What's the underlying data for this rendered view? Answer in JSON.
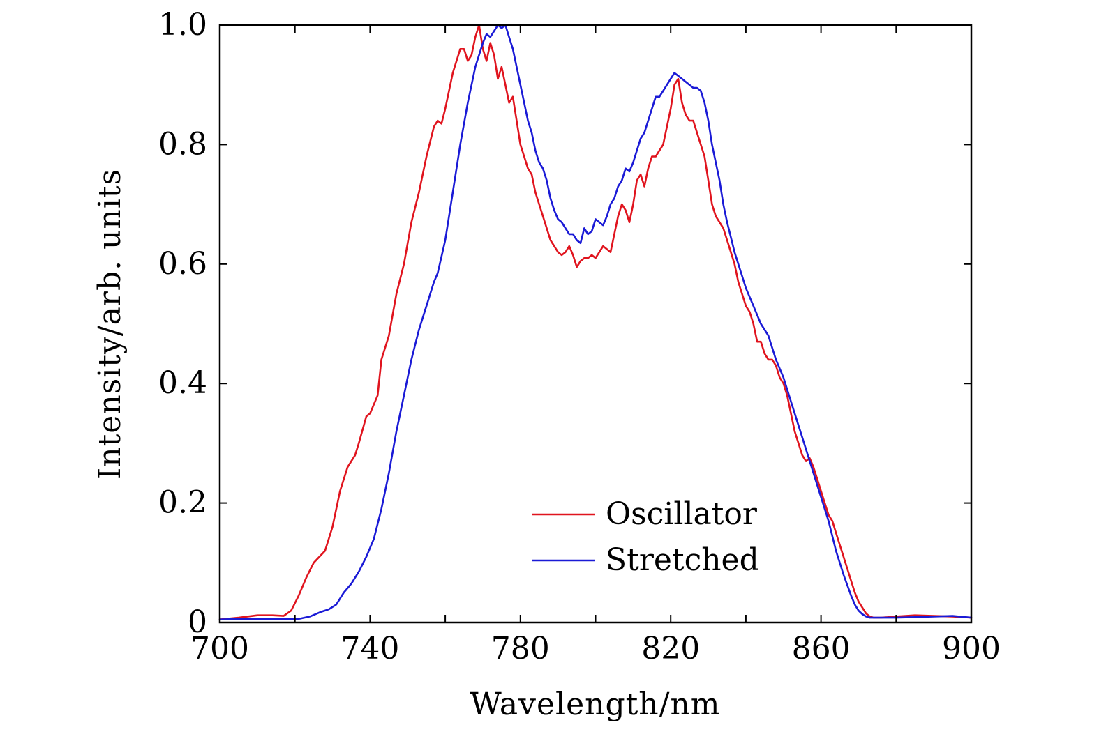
{
  "chart_data": {
    "type": "line",
    "title": "",
    "xlabel": "Wavelength/nm",
    "ylabel": "Intensity/arb. units",
    "xlim": [
      700,
      900
    ],
    "ylim": [
      0,
      1.0
    ],
    "grid": false,
    "legend_position": "bottom-right",
    "x_ticks": [
      700,
      740,
      780,
      820,
      860,
      900
    ],
    "x_tick_labels": [
      "700",
      "740",
      "780",
      "820",
      "860",
      "900"
    ],
    "x_minor_ticks": [
      720,
      760,
      800,
      840,
      880
    ],
    "y_ticks": [
      0,
      0.2,
      0.4,
      0.6,
      0.8,
      1.0
    ],
    "y_tick_labels": [
      "0",
      "0.2",
      "0.4",
      "0.6",
      "0.8",
      "1.0"
    ],
    "series": [
      {
        "name": "Oscillator",
        "color": "#e0141e",
        "x": [
          700,
          705,
          710,
          714,
          717,
          719,
          721,
          723,
          725,
          728,
          730,
          732,
          734,
          736,
          737,
          739,
          740,
          742,
          743,
          745,
          747,
          749,
          751,
          753,
          755,
          757,
          758,
          759,
          760,
          762,
          764,
          765,
          766,
          767,
          768,
          769,
          770,
          771,
          772,
          773,
          774,
          775,
          776,
          777,
          778,
          779,
          780,
          781,
          782,
          783,
          784,
          785,
          786,
          787,
          788,
          789,
          790,
          791,
          792,
          793,
          794,
          795,
          796,
          797,
          798,
          799,
          800,
          801,
          802,
          803,
          804,
          805,
          806,
          807,
          808,
          809,
          810,
          811,
          812,
          813,
          814,
          815,
          816,
          817,
          818,
          819,
          820,
          821,
          822,
          823,
          824,
          825,
          826,
          827,
          828,
          829,
          830,
          831,
          832,
          833,
          834,
          835,
          836,
          837,
          838,
          839,
          840,
          841,
          842,
          843,
          844,
          845,
          846,
          847,
          848,
          849,
          850,
          851,
          852,
          853,
          854,
          855,
          856,
          857,
          858,
          859,
          860,
          861,
          862,
          863,
          864,
          865,
          866,
          867,
          868,
          869,
          870,
          871,
          872,
          873,
          874,
          875,
          876,
          878,
          880,
          885,
          890,
          895,
          900
        ],
        "y": [
          0.005,
          0.008,
          0.012,
          0.012,
          0.011,
          0.02,
          0.045,
          0.075,
          0.1,
          0.12,
          0.16,
          0.22,
          0.26,
          0.28,
          0.3,
          0.345,
          0.35,
          0.38,
          0.44,
          0.48,
          0.55,
          0.6,
          0.67,
          0.72,
          0.78,
          0.83,
          0.84,
          0.835,
          0.86,
          0.92,
          0.96,
          0.96,
          0.94,
          0.95,
          0.98,
          1.0,
          0.96,
          0.94,
          0.97,
          0.95,
          0.91,
          0.93,
          0.9,
          0.87,
          0.88,
          0.84,
          0.8,
          0.78,
          0.76,
          0.75,
          0.72,
          0.7,
          0.68,
          0.66,
          0.64,
          0.63,
          0.62,
          0.615,
          0.62,
          0.63,
          0.615,
          0.595,
          0.605,
          0.61,
          0.61,
          0.615,
          0.61,
          0.62,
          0.63,
          0.625,
          0.62,
          0.65,
          0.68,
          0.7,
          0.69,
          0.67,
          0.7,
          0.74,
          0.75,
          0.73,
          0.76,
          0.78,
          0.78,
          0.79,
          0.8,
          0.83,
          0.86,
          0.9,
          0.91,
          0.87,
          0.85,
          0.84,
          0.84,
          0.82,
          0.8,
          0.78,
          0.74,
          0.7,
          0.68,
          0.67,
          0.66,
          0.64,
          0.62,
          0.6,
          0.57,
          0.55,
          0.53,
          0.52,
          0.5,
          0.47,
          0.47,
          0.45,
          0.44,
          0.44,
          0.43,
          0.41,
          0.4,
          0.38,
          0.35,
          0.32,
          0.3,
          0.28,
          0.27,
          0.275,
          0.26,
          0.24,
          0.22,
          0.2,
          0.18,
          0.17,
          0.15,
          0.13,
          0.11,
          0.09,
          0.07,
          0.05,
          0.035,
          0.025,
          0.015,
          0.01,
          0.008,
          0.008,
          0.008,
          0.009,
          0.01,
          0.012,
          0.011,
          0.01,
          0.008
        ]
      },
      {
        "name": "Stretched",
        "color": "#1a1ad6",
        "x": [
          700,
          705,
          710,
          715,
          718,
          721,
          724,
          727,
          729,
          731,
          733,
          735,
          737,
          739,
          741,
          743,
          745,
          747,
          749,
          751,
          753,
          755,
          757,
          758,
          760,
          762,
          764,
          766,
          768,
          770,
          771,
          772,
          773,
          774,
          775,
          776,
          777,
          778,
          779,
          780,
          781,
          782,
          783,
          784,
          785,
          786,
          787,
          788,
          789,
          790,
          791,
          792,
          793,
          794,
          795,
          796,
          797,
          798,
          799,
          800,
          801,
          802,
          803,
          804,
          805,
          806,
          807,
          808,
          809,
          810,
          811,
          812,
          813,
          814,
          815,
          816,
          817,
          818,
          819,
          820,
          821,
          822,
          823,
          824,
          825,
          826,
          827,
          828,
          829,
          830,
          831,
          832,
          833,
          834,
          835,
          836,
          837,
          838,
          839,
          840,
          842,
          844,
          846,
          848,
          850,
          852,
          854,
          856,
          858,
          860,
          862,
          864,
          866,
          868,
          869,
          870,
          871,
          872,
          873,
          874,
          875,
          876,
          878,
          880,
          885,
          890,
          895,
          900
        ],
        "y": [
          0.005,
          0.006,
          0.006,
          0.006,
          0.006,
          0.006,
          0.01,
          0.018,
          0.022,
          0.03,
          0.05,
          0.065,
          0.085,
          0.11,
          0.14,
          0.19,
          0.25,
          0.32,
          0.38,
          0.44,
          0.49,
          0.53,
          0.57,
          0.585,
          0.64,
          0.72,
          0.8,
          0.87,
          0.93,
          0.97,
          0.985,
          0.98,
          0.99,
          1.0,
          0.995,
          1.0,
          0.98,
          0.96,
          0.93,
          0.9,
          0.87,
          0.84,
          0.82,
          0.79,
          0.77,
          0.76,
          0.74,
          0.71,
          0.69,
          0.675,
          0.67,
          0.66,
          0.65,
          0.65,
          0.64,
          0.635,
          0.66,
          0.65,
          0.655,
          0.675,
          0.67,
          0.665,
          0.68,
          0.7,
          0.71,
          0.73,
          0.74,
          0.76,
          0.755,
          0.77,
          0.79,
          0.81,
          0.82,
          0.84,
          0.86,
          0.88,
          0.88,
          0.89,
          0.9,
          0.91,
          0.92,
          0.915,
          0.91,
          0.905,
          0.9,
          0.895,
          0.895,
          0.89,
          0.87,
          0.84,
          0.8,
          0.77,
          0.74,
          0.7,
          0.67,
          0.645,
          0.62,
          0.6,
          0.58,
          0.56,
          0.53,
          0.5,
          0.48,
          0.44,
          0.41,
          0.37,
          0.33,
          0.29,
          0.25,
          0.21,
          0.17,
          0.12,
          0.08,
          0.045,
          0.03,
          0.02,
          0.014,
          0.01,
          0.008,
          0.008,
          0.008,
          0.008,
          0.008,
          0.008,
          0.009,
          0.01,
          0.011,
          0.008
        ]
      }
    ]
  }
}
